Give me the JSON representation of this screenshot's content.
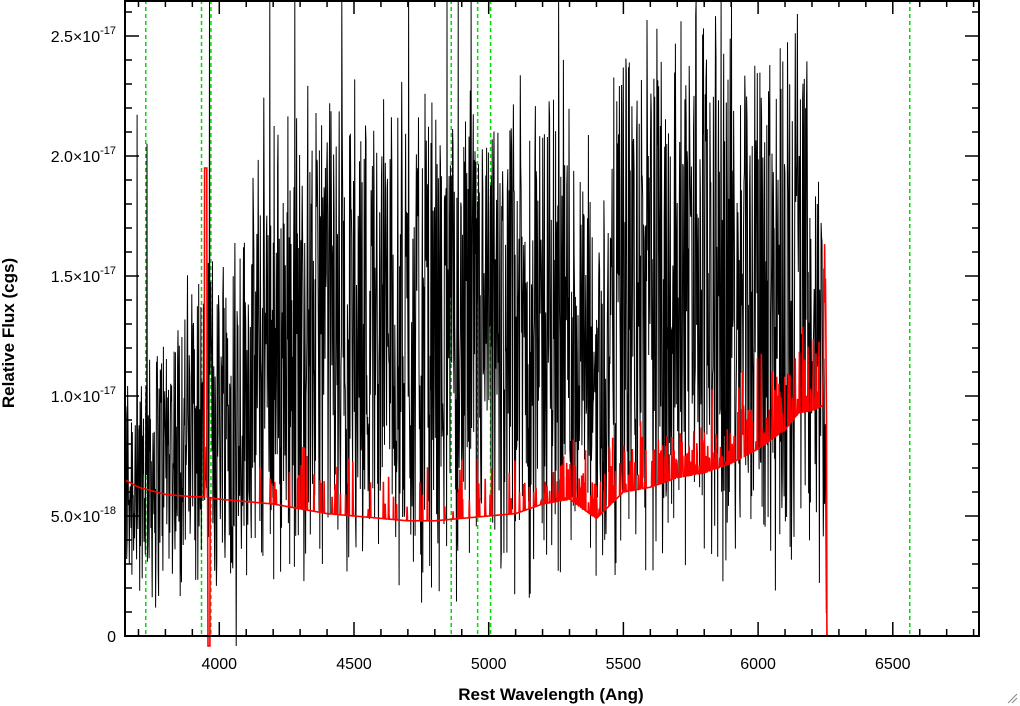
{
  "chart_data": {
    "type": "line",
    "title": "",
    "xlabel": "Rest Wavelength (Ang)",
    "ylabel": "Relative Flux (cgs)",
    "xlim": [
      3650,
      6820
    ],
    "ylim": [
      0,
      2.65e-17
    ],
    "x_ticks": [
      {
        "value": 4000,
        "label": "4000"
      },
      {
        "value": 4500,
        "label": "4500"
      },
      {
        "value": 5000,
        "label": "5000"
      },
      {
        "value": 5500,
        "label": "5500"
      },
      {
        "value": 6000,
        "label": "6000"
      },
      {
        "value": 6500,
        "label": "6500"
      }
    ],
    "y_ticks": [
      {
        "value": 0,
        "mantissa": "0",
        "exponent": ""
      },
      {
        "value": 5e-18,
        "mantissa": "5.0×10",
        "exponent": "-18"
      },
      {
        "value": 1e-17,
        "mantissa": "1.0×10",
        "exponent": "-17"
      },
      {
        "value": 1.5e-17,
        "mantissa": "1.5×10",
        "exponent": "-17"
      },
      {
        "value": 2e-17,
        "mantissa": "2.0×10",
        "exponent": "-17"
      },
      {
        "value": 2.5e-17,
        "mantissa": "2.5×10",
        "exponent": "-17"
      }
    ],
    "grid": false,
    "legend": "none",
    "reference_lines": [
      3727,
      3934,
      3969,
      4861,
      4959,
      5007,
      6563
    ],
    "reference_line_color": "#00dd00",
    "series": [
      {
        "color": "#000000",
        "description": "observed flux (noisy)",
        "x": [
          3650,
          3700,
          3750,
          3800,
          3850,
          3900,
          3950,
          4000,
          4100,
          4200,
          4300,
          4400,
          4500,
          4600,
          4700,
          4800,
          4900,
          5000,
          5100,
          5200,
          5300,
          5400,
          5500,
          5600,
          5700,
          5800,
          5900,
          6000,
          6100,
          6150,
          6200,
          6240,
          6260,
          6820
        ],
        "y": [
          6.5e-18,
          6.8e-18,
          7e-18,
          7.5e-18,
          8e-18,
          8.5e-18,
          9e-18,
          9.5e-18,
          1.05e-17,
          1.15e-17,
          1.25e-17,
          1.3e-17,
          1.3e-17,
          1.3e-17,
          1.25e-17,
          1.25e-17,
          1.25e-17,
          1.2e-17,
          1.25e-17,
          1.3e-17,
          1.3e-17,
          1.05e-17,
          1.4e-17,
          1.45e-17,
          1.45e-17,
          1.5e-17,
          1.5e-17,
          1.45e-17,
          1.5e-17,
          1.6e-17,
          1.2e-17,
          1e-17,
          0,
          0
        ]
      },
      {
        "color": "#ff0000",
        "description": "error spectrum",
        "x": [
          3650,
          3700,
          3800,
          3900,
          3950,
          4000,
          4100,
          4200,
          4300,
          4400,
          4500,
          4600,
          4700,
          4800,
          4900,
          5000,
          5100,
          5200,
          5300,
          5400,
          5500,
          5600,
          5700,
          5800,
          5900,
          6000,
          6100,
          6150,
          6200,
          6240,
          6250,
          6260,
          6820
        ],
        "y": [
          6.5e-18,
          6.2e-18,
          5.9e-18,
          5.8e-18,
          5.8e-18,
          5.7e-18,
          5.6e-18,
          5.5e-18,
          5.3e-18,
          5.1e-18,
          5e-18,
          4.9e-18,
          4.8e-18,
          4.8e-18,
          4.9e-18,
          5e-18,
          5.1e-18,
          5.5e-18,
          5.7e-18,
          4.9e-18,
          6e-18,
          6.2e-18,
          6.6e-18,
          6.8e-18,
          7.2e-18,
          7.8e-18,
          8.6e-18,
          9.3e-18,
          9.4e-18,
          9.6e-18,
          1.5e-17,
          0,
          0
        ]
      }
    ]
  }
}
